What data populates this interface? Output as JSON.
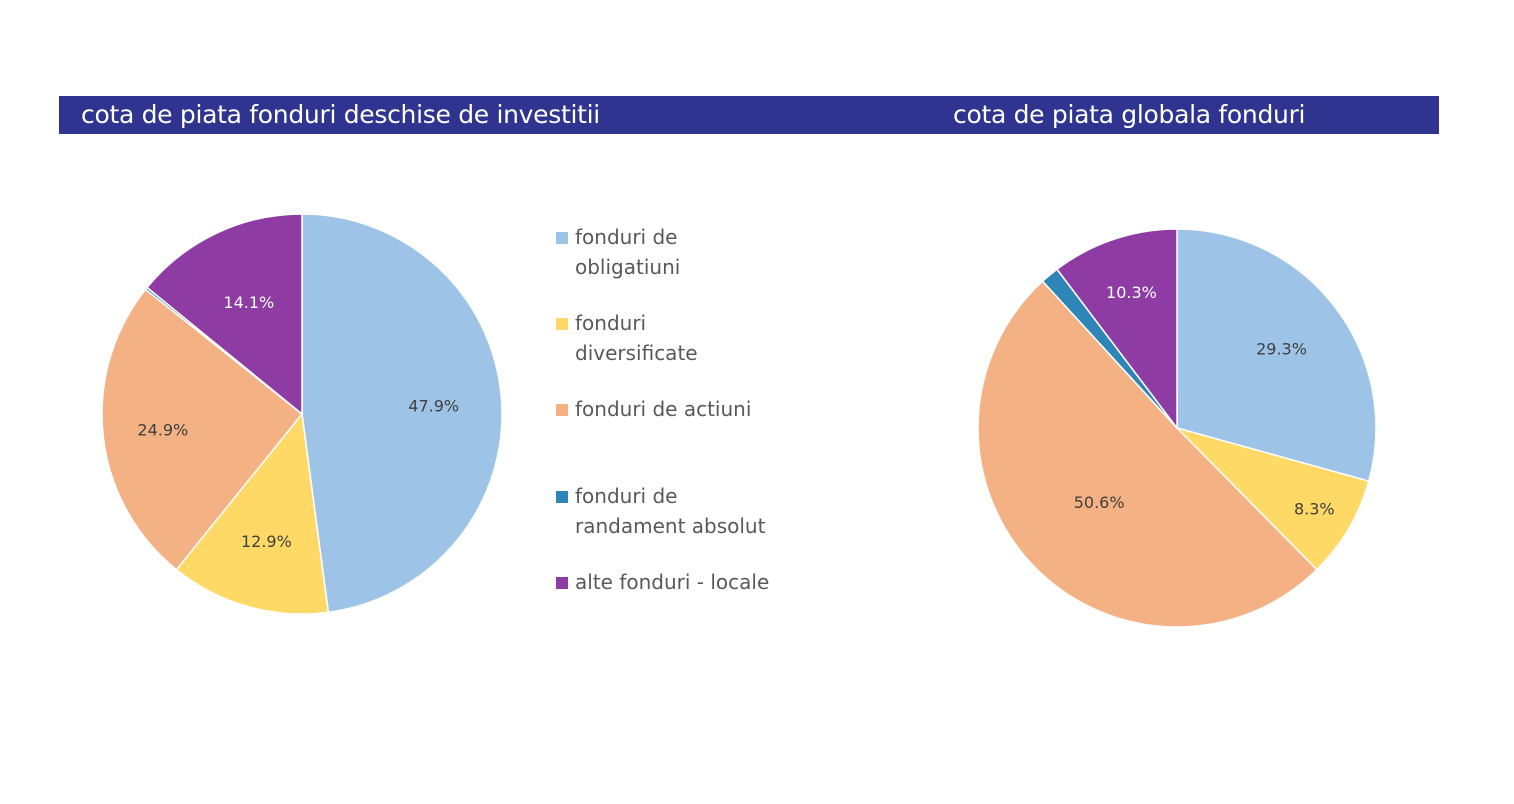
{
  "header": {
    "left_title": "cota de piata fonduri deschise de investitii",
    "right_title": "cota de piata globala fonduri"
  },
  "legend": [
    {
      "label": "fonduri de obligatiuni",
      "color": "#9dc3e6"
    },
    {
      "label": "fonduri diversificate",
      "color": "#ffd966"
    },
    {
      "label": "fonduri de actiuni",
      "color": "#f4b183"
    },
    {
      "label": "fonduri de randament absolut",
      "color": "#2e86b8"
    },
    {
      "label": "alte fonduri - locale",
      "color": "#8e3ba3"
    }
  ],
  "chart_data": [
    {
      "type": "pie",
      "title": "cota de piata fonduri deschise de investitii",
      "categories": [
        "fonduri de obligatiuni",
        "fonduri diversificate",
        "fonduri de actiuni",
        "fonduri de randament absolut",
        "alte fonduri - locale"
      ],
      "values": [
        47.9,
        12.9,
        24.9,
        0.2,
        14.1
      ],
      "labels": [
        "47.9%",
        "12.9%",
        "24.9%",
        "",
        "14.1%"
      ],
      "colors": [
        "#9dc3e6",
        "#ffd966",
        "#f4b183",
        "#2e86b8",
        "#8e3ba3"
      ],
      "label_colors": [
        "#404040",
        "#404040",
        "#404040",
        "#404040",
        "#ffffff"
      ],
      "legend_position": "right"
    },
    {
      "type": "pie",
      "title": "cota de piata globala fonduri",
      "categories": [
        "fonduri de obligatiuni",
        "fonduri diversificate",
        "fonduri de actiuni",
        "fonduri de randament absolut",
        "alte fonduri - locale"
      ],
      "values": [
        29.3,
        8.3,
        50.6,
        1.5,
        10.3
      ],
      "labels": [
        "29.3%",
        "8.3%",
        "50.6%",
        "",
        "10.3%"
      ],
      "colors": [
        "#9dc3e6",
        "#ffd966",
        "#f4b183",
        "#2e86b8",
        "#8e3ba3"
      ],
      "label_colors": [
        "#404040",
        "#404040",
        "#404040",
        "#404040",
        "#ffffff"
      ],
      "legend_position": "none"
    }
  ]
}
